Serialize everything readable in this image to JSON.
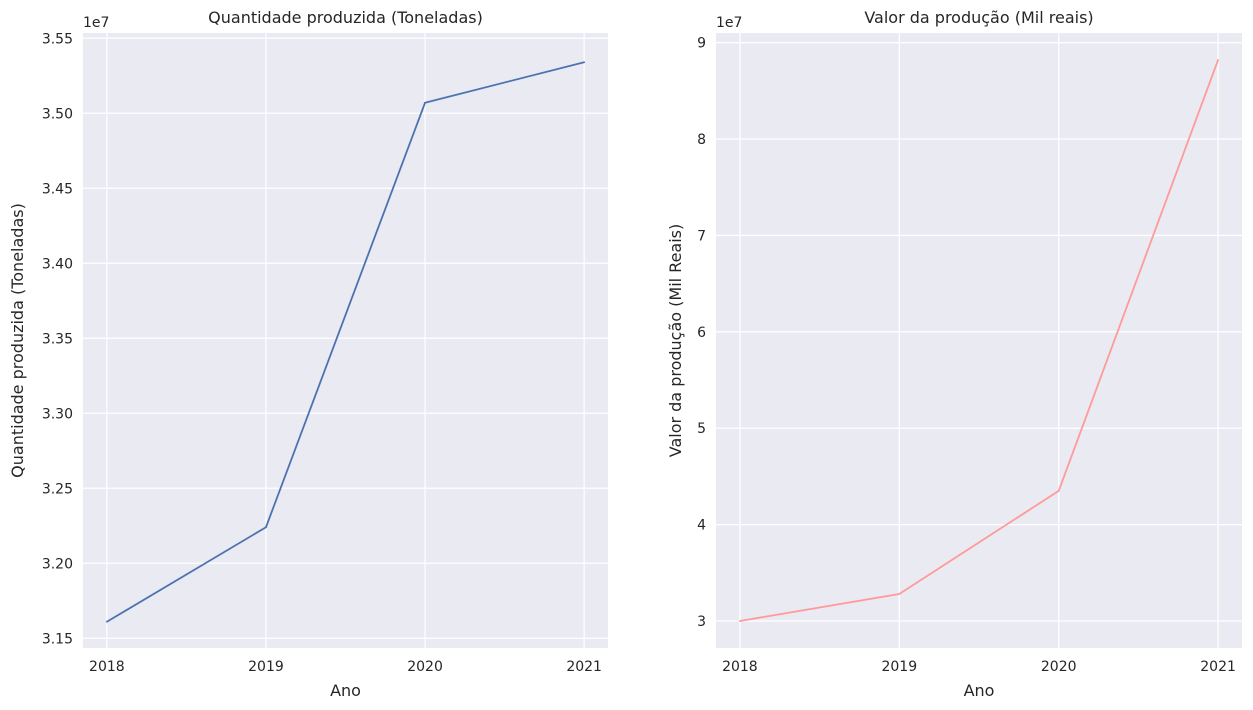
{
  "chart_data": [
    {
      "type": "line",
      "title": "Quantidade produzida (Toneladas)",
      "xlabel": "Ano",
      "ylabel": "Quantidade produzida (Toneladas)",
      "offset_label": "1e7",
      "x": [
        2018,
        2019,
        2020,
        2021
      ],
      "xticks": [
        "2018",
        "2019",
        "2020",
        "2021"
      ],
      "xlim": [
        2017.85,
        2021.15
      ],
      "yticks": [
        "3.15",
        "3.20",
        "3.25",
        "3.30",
        "3.35",
        "3.40",
        "3.45",
        "3.50",
        "3.55"
      ],
      "ytick_values": [
        3.15,
        3.2,
        3.25,
        3.3,
        3.35,
        3.4,
        3.45,
        3.5,
        3.55
      ],
      "ylim": [
        3.1435,
        3.5535
      ],
      "grid": true,
      "series": [
        {
          "values": [
            3.161,
            3.224,
            3.507,
            3.534
          ],
          "color": "#4c72b0"
        }
      ]
    },
    {
      "type": "line",
      "title": "Valor da produção (Mil reais)",
      "xlabel": "Ano",
      "ylabel": "Valor da produção (Mil Reais)",
      "offset_label": "1e7",
      "x": [
        2018,
        2019,
        2020,
        2021
      ],
      "xticks": [
        "2018",
        "2019",
        "2020",
        "2021"
      ],
      "xlim": [
        2017.85,
        2021.15
      ],
      "yticks": [
        "3",
        "4",
        "5",
        "6",
        "7",
        "8",
        "9"
      ],
      "ytick_values": [
        3,
        4,
        5,
        6,
        7,
        8,
        9
      ],
      "ylim": [
        2.72,
        9.1
      ],
      "grid": true,
      "series": [
        {
          "values": [
            3.0,
            3.28,
            4.35,
            8.82
          ],
          "color": "#ff9a9a"
        }
      ]
    }
  ],
  "colors": {
    "background": "#eaeaf2",
    "grid": "#ffffff",
    "text": "#262626"
  }
}
